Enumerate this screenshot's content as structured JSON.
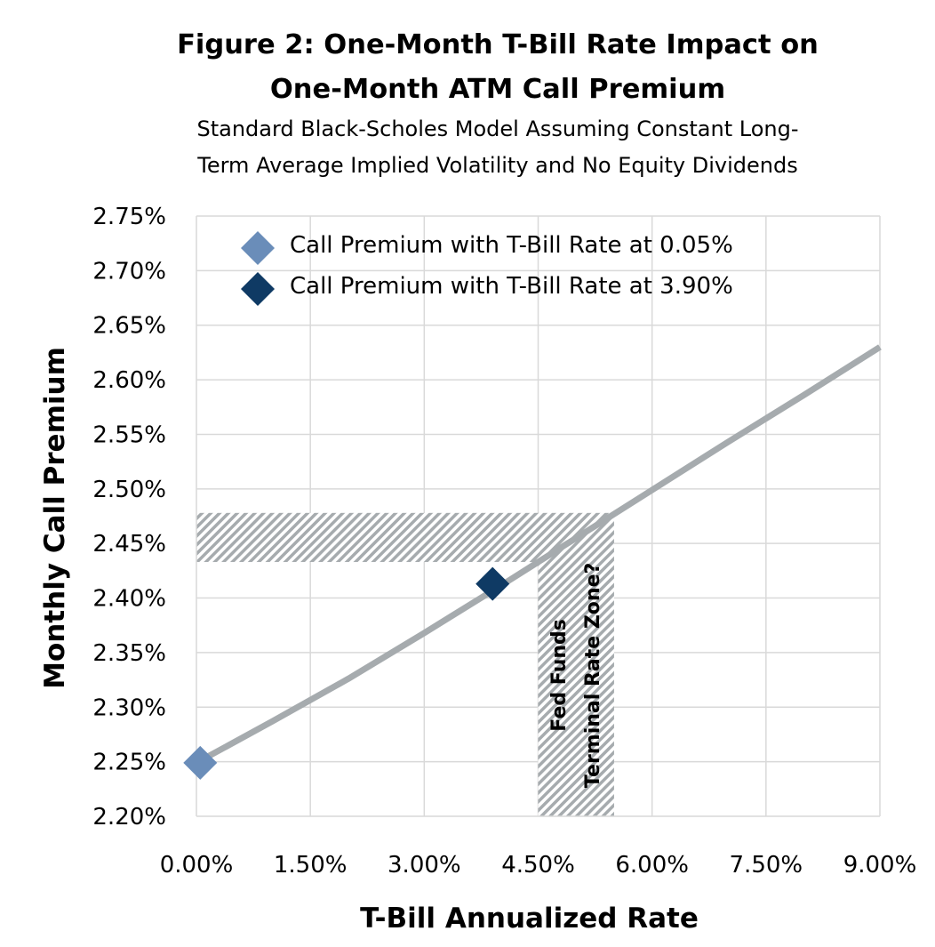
{
  "header": {
    "title_line1": "Figure 2: One-Month T-Bill Rate Impact on",
    "title_line2": "One-Month ATM Call Premium",
    "subtitle_line1": "Standard Black-Scholes Model Assuming Constant Long-",
    "subtitle_line2": "Term Average Implied Volatility and No Equity Dividends"
  },
  "chart_data": {
    "type": "line",
    "title": "Figure 2: One-Month T-Bill Rate Impact on One-Month ATM Call Premium",
    "subtitle": "Standard Black-Scholes Model Assuming Constant Long-Term Average Implied Volatility and No Equity Dividends",
    "xlabel": "T-Bill Annualized Rate",
    "ylabel": "Monthly Call Premium",
    "xlim": [
      0,
      9
    ],
    "ylim": [
      2.2,
      2.75
    ],
    "x_ticks": [
      "0.00%",
      "1.50%",
      "3.00%",
      "4.50%",
      "6.00%",
      "7.50%",
      "9.00%"
    ],
    "x_tick_values": [
      0,
      1.5,
      3,
      4.5,
      6,
      7.5,
      9
    ],
    "y_ticks": [
      "2.20%",
      "2.25%",
      "2.30%",
      "2.35%",
      "2.40%",
      "2.45%",
      "2.50%",
      "2.55%",
      "2.60%",
      "2.65%",
      "2.70%",
      "2.75%"
    ],
    "y_tick_values": [
      2.2,
      2.25,
      2.3,
      2.35,
      2.4,
      2.45,
      2.5,
      2.55,
      2.6,
      2.65,
      2.7,
      2.75
    ],
    "grid": true,
    "legend_position": "top-left",
    "series": [
      {
        "kind": "line",
        "color": "#a6abae",
        "x": [
          0,
          1,
          2,
          3,
          4,
          5,
          6,
          7,
          8,
          9
        ],
        "y": [
          2.249,
          2.287,
          2.326,
          2.368,
          2.411,
          2.455,
          2.499,
          2.543,
          2.586,
          2.63
        ]
      },
      {
        "kind": "point",
        "name": "Call Premium with T-Bill Rate at 0.05%",
        "marker": "diamond",
        "color": "#6a8db9",
        "x": [
          0.05
        ],
        "y": [
          2.249
        ]
      },
      {
        "kind": "point",
        "name": "Call Premium with T-Bill Rate at 3.90%",
        "marker": "diamond",
        "color": "#0f3a64",
        "x": [
          3.9
        ],
        "y": [
          2.413
        ]
      }
    ],
    "zone": {
      "x_range": [
        4.5,
        5.5
      ],
      "y_range": [
        2.433,
        2.478
      ],
      "label_line1": "Fed Funds",
      "label_line2": "Terminal Rate Zone?",
      "color": "#a6abae"
    }
  }
}
